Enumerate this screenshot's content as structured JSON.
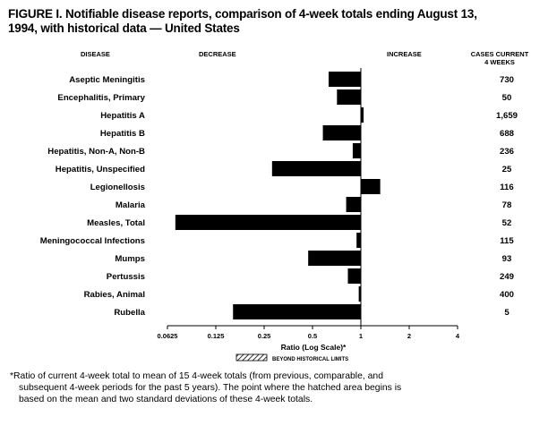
{
  "figure": {
    "title_line1": "FIGURE I. Notifiable disease reports, comparison of 4-week totals ending August 13,",
    "title_line2": "1994, with historical data — United States"
  },
  "headers": {
    "disease": "DISEASE",
    "decrease": "DECREASE",
    "increase": "INCREASE",
    "cases_line1": "CASES CURRENT",
    "cases_line2": "4 WEEKS"
  },
  "legend": {
    "label": "BEYOND HISTORICAL LIMITS",
    "fill_color": "#ffffff",
    "hatch_color": "#000000"
  },
  "footnote": {
    "line1": "*Ratio of current 4-week total to mean of 15 4-week totals (from previous, comparable, and",
    "line2": "subsequent 4-week periods for the past 5 years). The point where the hatched area begins is",
    "line3": "based on the mean and two standard deviations of these 4-week totals."
  },
  "chart_data": {
    "type": "bar",
    "orientation": "horizontal",
    "scale": "log2",
    "baseline": 1,
    "categories": [
      "Aseptic Meningitis",
      "Encephalitis, Primary",
      "Hepatitis A",
      "Hepatitis B",
      "Hepatitis, Non-A, Non-B",
      "Hepatitis, Unspecified",
      "Legionellosis",
      "Malaria",
      "Measles, Total",
      "Meningococcal Infections",
      "Mumps",
      "Pertussis",
      "Rabies, Animal",
      "Rubella"
    ],
    "values": [
      0.63,
      0.71,
      1.04,
      0.58,
      0.89,
      0.28,
      1.32,
      0.81,
      0.07,
      0.94,
      0.47,
      0.83,
      0.97,
      0.16
    ],
    "cases_current_4_weeks": [
      "730",
      "50",
      "1,659",
      "688",
      "236",
      "25",
      "116",
      "78",
      "52",
      "115",
      "93",
      "249",
      "400",
      "5"
    ],
    "xticks": [
      0.0625,
      0.125,
      0.25,
      0.5,
      1,
      2,
      4
    ],
    "xtick_labels": [
      "0.0625",
      "0.125",
      "0.25",
      "0.5",
      "1",
      "2",
      "4"
    ],
    "xlim": [
      0.0625,
      4
    ],
    "xlabel": "Ratio (Log Scale)*",
    "bar_color": "#000000",
    "beyond_historical_limits": []
  }
}
